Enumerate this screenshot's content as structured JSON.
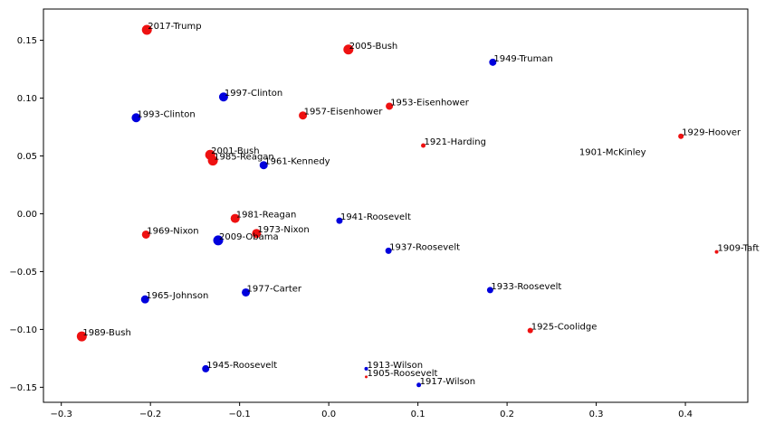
{
  "chart_data": {
    "type": "scatter",
    "title": "",
    "xlabel": "",
    "ylabel": "",
    "xlim": [
      -0.32,
      0.47
    ],
    "ylim": [
      -0.163,
      0.177
    ],
    "xticks": [
      -0.3,
      -0.2,
      -0.1,
      0.0,
      0.1,
      0.2,
      0.3,
      0.4
    ],
    "xtick_labels": [
      "−0.3",
      "−0.2",
      "−0.1",
      "0.0",
      "0.1",
      "0.2",
      "0.3",
      "0.4"
    ],
    "yticks": [
      0.15,
      0.1,
      0.05,
      0.0,
      -0.05,
      -0.1,
      -0.15
    ],
    "ytick_labels": [
      "0.15",
      "0.10",
      "0.05",
      "0.00",
      "−0.05",
      "−0.10",
      "−0.15"
    ],
    "grid": false,
    "colors": {
      "red": "#ee1111",
      "blue": "#0000dd"
    },
    "points": [
      {
        "label": "2017-Trump",
        "x": -0.204,
        "y": 0.159,
        "color": "red",
        "size": 5.5
      },
      {
        "label": "2005-Bush",
        "x": 0.022,
        "y": 0.142,
        "color": "red",
        "size": 5.5
      },
      {
        "label": "1949-Truman",
        "x": 0.184,
        "y": 0.131,
        "color": "blue",
        "size": 4
      },
      {
        "label": "1997-Clinton",
        "x": -0.118,
        "y": 0.101,
        "color": "blue",
        "size": 5
      },
      {
        "label": "1993-Clinton",
        "x": -0.216,
        "y": 0.083,
        "color": "blue",
        "size": 5
      },
      {
        "label": "1957-Eisenhower",
        "x": -0.029,
        "y": 0.085,
        "color": "red",
        "size": 4.5
      },
      {
        "label": "1953-Eisenhower",
        "x": 0.068,
        "y": 0.093,
        "color": "red",
        "size": 4
      },
      {
        "label": "1921-Harding",
        "x": 0.106,
        "y": 0.059,
        "color": "red",
        "size": 2.5
      },
      {
        "label": "1929-Hoover",
        "x": 0.395,
        "y": 0.067,
        "color": "red",
        "size": 3
      },
      {
        "label": "1901-McKinley",
        "x": 0.28,
        "y": 0.05,
        "color": "red",
        "size": 0
      },
      {
        "label": "2001-Bush",
        "x": -0.133,
        "y": 0.051,
        "color": "red",
        "size": 5.5
      },
      {
        "label": "1985-Reagan",
        "x": -0.13,
        "y": 0.046,
        "color": "red",
        "size": 5.5
      },
      {
        "label": "1961-Kennedy",
        "x": -0.073,
        "y": 0.042,
        "color": "blue",
        "size": 4.5
      },
      {
        "label": "1981-Reagan",
        "x": -0.105,
        "y": -0.004,
        "color": "red",
        "size": 5
      },
      {
        "label": "1941-Roosevelt",
        "x": 0.012,
        "y": -0.006,
        "color": "blue",
        "size": 3.5
      },
      {
        "label": "1969-Nixon",
        "x": -0.205,
        "y": -0.018,
        "color": "red",
        "size": 4.5
      },
      {
        "label": "1973-Nixon",
        "x": -0.081,
        "y": -0.017,
        "color": "red",
        "size": 5
      },
      {
        "label": "2009-Obama",
        "x": -0.124,
        "y": -0.023,
        "color": "blue",
        "size": 5.5
      },
      {
        "label": "1937-Roosevelt",
        "x": 0.067,
        "y": -0.032,
        "color": "blue",
        "size": 3.5
      },
      {
        "label": "1909-Taft",
        "x": 0.435,
        "y": -0.033,
        "color": "red",
        "size": 2
      },
      {
        "label": "1977-Carter",
        "x": -0.093,
        "y": -0.068,
        "color": "blue",
        "size": 4.5
      },
      {
        "label": "1933-Roosevelt",
        "x": 0.181,
        "y": -0.066,
        "color": "blue",
        "size": 3.5
      },
      {
        "label": "1965-Johnson",
        "x": -0.206,
        "y": -0.074,
        "color": "blue",
        "size": 4.5
      },
      {
        "label": "1925-Coolidge",
        "x": 0.226,
        "y": -0.101,
        "color": "red",
        "size": 3
      },
      {
        "label": "1989-Bush",
        "x": -0.277,
        "y": -0.106,
        "color": "red",
        "size": 5.5
      },
      {
        "label": "1945-Roosevelt",
        "x": -0.138,
        "y": -0.134,
        "color": "blue",
        "size": 4
      },
      {
        "label": "1913-Wilson",
        "x": 0.042,
        "y": -0.134,
        "color": "blue",
        "size": 2
      },
      {
        "label": "1905-Roosevelt",
        "x": 0.042,
        "y": -0.141,
        "color": "red",
        "size": 1.5
      },
      {
        "label": "1917-Wilson",
        "x": 0.101,
        "y": -0.148,
        "color": "blue",
        "size": 2.5
      }
    ]
  }
}
